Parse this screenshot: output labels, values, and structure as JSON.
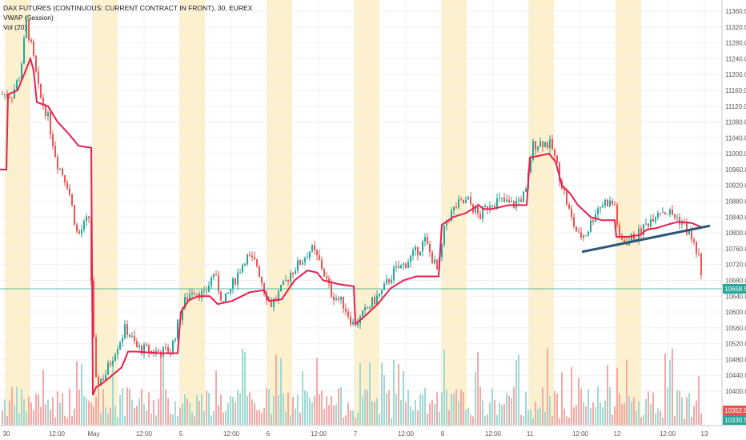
{
  "legend": {
    "title": "DAX FUTURES (CONTINUOUS: CURRENT CONTRACT IN FRONT), 30, EUREX",
    "vwap": "VWAP (Session)",
    "vol": "Vol (20)"
  },
  "colors": {
    "up": "#26a69a",
    "down": "#ef5350",
    "vwap": "#e91e4f",
    "trendline": "#2a5577",
    "session_shade": "#fdf0cc",
    "price_tag": "#26a69a",
    "vol_tag_down": "#ef5350",
    "vol_tag_up": "#26a69a"
  },
  "chart_data": {
    "type": "candlestick",
    "price_axis_ticks": [
      "11360.0",
      "11320.0",
      "11280.0",
      "11240.0",
      "11200.0",
      "11160.0",
      "11120.0",
      "11080.0",
      "11040.0",
      "11000.0",
      "10960.0",
      "10920.0",
      "10880.0",
      "10840.0",
      "10800.0",
      "10760.0",
      "10720.0",
      "10680.0",
      "10640.0",
      "10600.0",
      "10560.0",
      "10520.0",
      "10480.0",
      "10440.0",
      "10400.0"
    ],
    "price_tags": {
      "last": "10658.5",
      "vol1": "10352.0",
      "vol2": "10330.5"
    },
    "time_axis_ticks": [
      "30",
      "12:00",
      "May",
      "12:00",
      "5",
      "12:00",
      "6",
      "12:00",
      "7",
      "12:00",
      "8",
      "12:00",
      "11",
      "12:00",
      "12",
      "12:00",
      "13"
    ],
    "ylim": [
      10330,
      11380
    ],
    "sessions": [
      "30",
      "May",
      "5",
      "6",
      "7",
      "8",
      "11",
      "12",
      "13"
    ],
    "vwap_path": [
      [
        0,
        10960
      ],
      [
        8,
        10960
      ],
      [
        10,
        11150
      ],
      [
        22,
        11160
      ],
      [
        30,
        11200
      ],
      [
        38,
        11240
      ],
      [
        42,
        11210
      ],
      [
        46,
        11130
      ],
      [
        60,
        11120
      ],
      [
        72,
        11080
      ],
      [
        86,
        11050
      ],
      [
        98,
        11020
      ],
      [
        114,
        11015
      ],
      [
        116,
        10390
      ],
      [
        120,
        10410
      ],
      [
        128,
        10420
      ],
      [
        140,
        10440
      ],
      [
        152,
        10460
      ],
      [
        160,
        10500
      ],
      [
        170,
        10500
      ],
      [
        184,
        10498
      ],
      [
        200,
        10496
      ],
      [
        222,
        10496
      ],
      [
        226,
        10600
      ],
      [
        236,
        10630
      ],
      [
        248,
        10640
      ],
      [
        262,
        10640
      ],
      [
        272,
        10620
      ],
      [
        290,
        10628
      ],
      [
        312,
        10650
      ],
      [
        330,
        10655
      ],
      [
        336,
        10628
      ],
      [
        352,
        10632
      ],
      [
        368,
        10680
      ],
      [
        384,
        10705
      ],
      [
        396,
        10700
      ],
      [
        404,
        10680
      ],
      [
        424,
        10670
      ],
      [
        442,
        10665
      ],
      [
        444,
        10570
      ],
      [
        456,
        10590
      ],
      [
        472,
        10620
      ],
      [
        488,
        10660
      ],
      [
        504,
        10680
      ],
      [
        520,
        10690
      ],
      [
        548,
        10690
      ],
      [
        552,
        10820
      ],
      [
        566,
        10840
      ],
      [
        582,
        10850
      ],
      [
        598,
        10870
      ],
      [
        604,
        10860
      ],
      [
        614,
        10860
      ],
      [
        636,
        10870
      ],
      [
        658,
        10870
      ],
      [
        662,
        10990
      ],
      [
        674,
        10995
      ],
      [
        686,
        11000
      ],
      [
        694,
        10980
      ],
      [
        702,
        10920
      ],
      [
        712,
        10900
      ],
      [
        722,
        10870
      ],
      [
        738,
        10840
      ],
      [
        752,
        10832
      ],
      [
        768,
        10832
      ],
      [
        770,
        10790
      ],
      [
        786,
        10790
      ],
      [
        800,
        10795
      ],
      [
        808,
        10808
      ],
      [
        820,
        10812
      ],
      [
        836,
        10822
      ],
      [
        848,
        10828
      ],
      [
        864,
        10825
      ],
      [
        876,
        10815
      ]
    ],
    "trendline": [
      [
        727,
        10752
      ],
      [
        887,
        10818
      ]
    ],
    "last_price": 10658.5
  }
}
